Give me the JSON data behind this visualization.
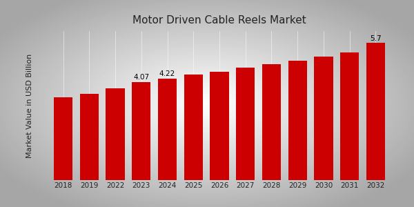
{
  "title": "Motor Driven Cable Reels Market",
  "ylabel": "Market Value in USD Billion",
  "categories": [
    "2018",
    "2019",
    "2022",
    "2023",
    "2024",
    "2025",
    "2026",
    "2027",
    "2028",
    "2029",
    "2030",
    "2031",
    "2032"
  ],
  "values": [
    3.45,
    3.6,
    3.82,
    4.07,
    4.22,
    4.38,
    4.52,
    4.67,
    4.82,
    4.98,
    5.15,
    5.32,
    5.7
  ],
  "bar_color": "#cc0000",
  "label_indices": [
    3,
    4,
    12
  ],
  "label_values": [
    "4.07",
    "4.22",
    "5.7"
  ],
  "title_fontsize": 11,
  "ylabel_fontsize": 8,
  "tick_fontsize": 7.5,
  "bottom_bar_color": "#cc0000",
  "ylim": [
    0,
    6.2
  ],
  "bg_outer": "#c8c8c8",
  "bg_inner": "#f5f5f5"
}
